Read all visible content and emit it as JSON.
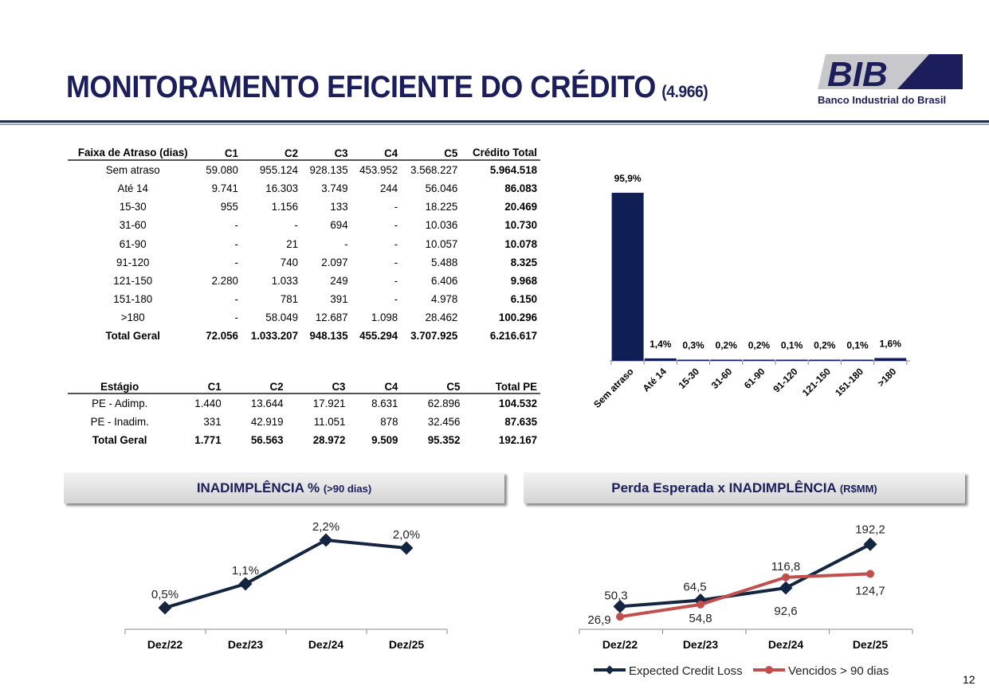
{
  "header": {
    "title": "MONITORAMENTO EFICIENTE DO CRÉDITO",
    "subtitle": "(4.966)",
    "logo_text": "BIB",
    "logo_caption": "Banco Industrial do Brasil"
  },
  "credit_table": {
    "headers": [
      "Faixa de Atraso (dias)",
      "C1",
      "C2",
      "C3",
      "C4",
      "C5",
      "Crédito Total"
    ],
    "rows": [
      [
        "Sem atraso",
        "59.080",
        "955.124",
        "928.135",
        "453.952",
        "3.568.227",
        "5.964.518"
      ],
      [
        "Até 14",
        "9.741",
        "16.303",
        "3.749",
        "244",
        "56.046",
        "86.083"
      ],
      [
        "15-30",
        "955",
        "1.156",
        "133",
        "-",
        "18.225",
        "20.469"
      ],
      [
        "31-60",
        "-",
        "-",
        "694",
        "-",
        "10.036",
        "10.730"
      ],
      [
        "61-90",
        "-",
        "21",
        "-",
        "-",
        "10.057",
        "10.078"
      ],
      [
        "91-120",
        "-",
        "740",
        "2.097",
        "-",
        "5.488",
        "8.325"
      ],
      [
        "121-150",
        "2.280",
        "1.033",
        "249",
        "-",
        "6.406",
        "9.968"
      ],
      [
        "151-180",
        "-",
        "781",
        "391",
        "-",
        "4.978",
        "6.150"
      ],
      [
        ">180",
        "-",
        "58.049",
        "12.687",
        "1.098",
        "28.462",
        "100.296"
      ],
      [
        "Total Geral",
        "72.056",
        "1.033.207",
        "948.135",
        "455.294",
        "3.707.925",
        "6.216.617"
      ]
    ]
  },
  "pe_table": {
    "headers": [
      "Estágio",
      "C1",
      "C2",
      "C3",
      "C4",
      "C5",
      "Total PE"
    ],
    "rows": [
      [
        "PE - Adimp.",
        "1.440",
        "13.644",
        "17.921",
        "8.631",
        "62.896",
        "104.532"
      ],
      [
        "PE - Inadim.",
        "331",
        "42.919",
        "11.051",
        "878",
        "32.456",
        "87.635"
      ],
      [
        "Total Geral",
        "1.771",
        "56.563",
        "28.972",
        "9.509",
        "95.352",
        "192.167"
      ]
    ]
  },
  "panels": {
    "left_title": "INADIMPLÊNCIA %",
    "left_sub": "(>90 dias)",
    "right_title": "Perda Esperada x INADIMPLÊNCIA",
    "right_sub": "(R$MM)"
  },
  "page_number": "12",
  "colors": {
    "navy": "#0f1f55",
    "line_dark": "#142542",
    "line_red": "#c0504d"
  },
  "chart_data": [
    {
      "type": "bar",
      "title": "",
      "categories": [
        "Sem atraso",
        "Até 14",
        "15-30",
        "31-60",
        "61-90",
        "91-120",
        "121-150",
        "151-180",
        ">180"
      ],
      "values": [
        95.9,
        1.4,
        0.3,
        0.2,
        0.2,
        0.1,
        0.2,
        0.1,
        1.6
      ],
      "labels": [
        "95,9%",
        "1,4%",
        "0,3%",
        "0,2%",
        "0,2%",
        "0,1%",
        "0,2%",
        "0,1%",
        "1,6%"
      ],
      "ylim": [
        0,
        100
      ],
      "grid": false
    },
    {
      "type": "line",
      "title": "INADIMPLÊNCIA % (>90 dias)",
      "categories": [
        "Dez/22",
        "Dez/23",
        "Dez/24",
        "Dez/25"
      ],
      "values": [
        0.5,
        1.1,
        2.2,
        2.0
      ],
      "labels": [
        "0,5%",
        "1,1%",
        "2,2%",
        "2,0%"
      ],
      "grid": false
    },
    {
      "type": "line",
      "title": "Perda Esperada x INADIMPLÊNCIA (R$MM)",
      "categories": [
        "Dez/22",
        "Dez/23",
        "Dez/24",
        "Dez/25"
      ],
      "legend": "bottom",
      "series": [
        {
          "name": "Expected Credit Loss",
          "values": [
            50.3,
            64.5,
            92.6,
            192.2
          ],
          "labels": [
            "50,3",
            "64,5",
            "92,6",
            "192,2"
          ]
        },
        {
          "name": "Vencidos > 90 dias",
          "values": [
            26.9,
            54.8,
            116.8,
            124.7
          ],
          "labels": [
            "26,9",
            "54,8",
            "116,8",
            "124,7"
          ]
        }
      ],
      "grid": false
    }
  ]
}
